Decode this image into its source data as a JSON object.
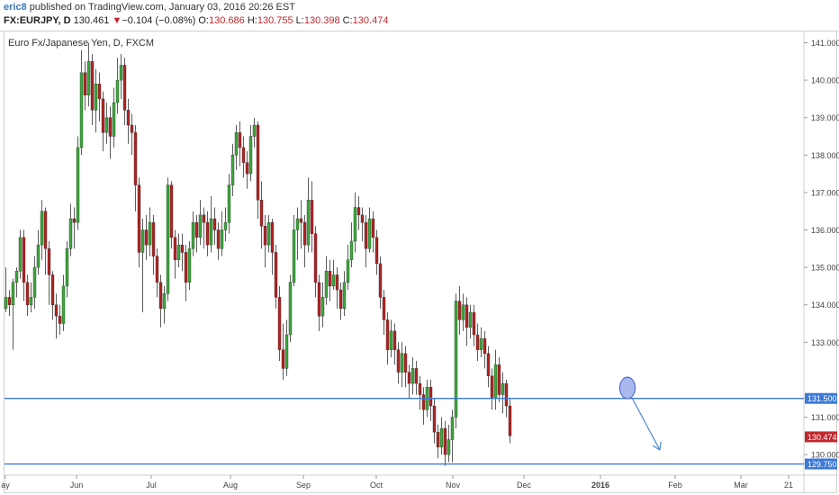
{
  "header": {
    "author": "eric8",
    "published_text": " published on TradingView.com, January 03, 2016 20:26 EST",
    "symbol": "FX:EURJPY, D",
    "last_price": "130.461",
    "change": "−0.104 (−0.08%)",
    "open_label": "O:",
    "open_value": "130.686",
    "high_label": "H:",
    "high_value": "130.755",
    "low_label": "L:",
    "low_value": "130.398",
    "close_label": "C:",
    "close_value": "130.474"
  },
  "chart_title": "Euro Fx/Japanese Yen, D, FXCM",
  "colors": {
    "up": "#3aa93a",
    "down": "#b22222",
    "wick": "#333333",
    "hline": "#3b79d9",
    "marker_fill": "#a9b8ef",
    "marker_stroke": "#3b5bd0",
    "arrow": "#4a84d8",
    "last_price_badge": "#c1272d"
  },
  "chart_data": {
    "type": "candlestick",
    "ylim": [
      129.45,
      141.3
    ],
    "y_ticks": [
      "141.000",
      "140.000",
      "139.000",
      "138.000",
      "137.000",
      "136.000",
      "135.000",
      "134.000",
      "133.000",
      "131.000",
      "130.000"
    ],
    "x_ticks": [
      "ay",
      "Jun",
      "Jul",
      "Aug",
      "Sep",
      "Oct",
      "Nov",
      "Dec",
      "2016",
      "Feb",
      "Mar",
      "21"
    ],
    "horizontal_levels": [
      {
        "value": 131.5,
        "label": "131.500"
      },
      {
        "value": 129.75,
        "label": "129.750"
      }
    ],
    "last_price": {
      "value": 130.474,
      "label": "130.474"
    },
    "candles": [
      [
        133.9,
        134.2,
        135.0,
        133.8
      ],
      [
        134.2,
        134.0,
        134.4,
        133.7
      ],
      [
        134.0,
        134.6,
        134.7,
        132.8
      ],
      [
        134.6,
        134.9,
        135.0,
        134.2
      ],
      [
        134.9,
        135.8,
        136.0,
        134.7
      ],
      [
        135.8,
        134.6,
        136.0,
        134.1
      ],
      [
        134.6,
        134.0,
        134.8,
        133.7
      ],
      [
        134.0,
        134.2,
        134.6,
        133.8
      ],
      [
        134.2,
        135.0,
        135.3,
        133.9
      ],
      [
        135.0,
        135.6,
        136.0,
        134.8
      ],
      [
        135.6,
        136.5,
        136.8,
        135.2
      ],
      [
        136.5,
        135.5,
        136.6,
        134.8
      ],
      [
        135.5,
        134.8,
        135.7,
        134.0
      ],
      [
        134.8,
        134.0,
        134.9,
        133.6
      ],
      [
        134.0,
        133.7,
        134.3,
        133.1
      ],
      [
        133.7,
        133.5,
        134.0,
        133.2
      ],
      [
        133.5,
        134.5,
        134.8,
        133.3
      ],
      [
        134.5,
        135.5,
        135.7,
        134.2
      ],
      [
        135.5,
        136.3,
        136.7,
        135.3
      ],
      [
        136.3,
        136.2,
        136.6,
        135.5
      ],
      [
        136.2,
        138.2,
        138.5,
        136.0
      ],
      [
        138.2,
        140.2,
        140.8,
        138.0
      ],
      [
        140.2,
        139.6,
        140.5,
        139.2
      ],
      [
        139.6,
        140.5,
        141.0,
        139.3
      ],
      [
        140.5,
        139.2,
        140.7,
        138.8
      ],
      [
        139.2,
        139.9,
        140.3,
        138.6
      ],
      [
        139.9,
        139.5,
        140.2,
        138.9
      ],
      [
        139.5,
        138.6,
        139.7,
        138.1
      ],
      [
        138.6,
        139.0,
        139.4,
        138.3
      ],
      [
        139.0,
        138.5,
        139.3,
        137.9
      ],
      [
        138.5,
        139.4,
        139.8,
        138.2
      ],
      [
        139.4,
        140.0,
        140.6,
        139.1
      ],
      [
        140.0,
        140.4,
        140.7,
        139.5
      ],
      [
        140.4,
        139.2,
        140.6,
        138.8
      ],
      [
        139.2,
        138.8,
        139.5,
        138.3
      ],
      [
        138.8,
        138.6,
        139.1,
        138.0
      ],
      [
        138.6,
        137.2,
        138.8,
        136.5
      ],
      [
        137.2,
        135.4,
        137.4,
        135.0
      ],
      [
        135.4,
        136.0,
        136.3,
        133.8
      ],
      [
        136.0,
        135.6,
        136.4,
        135.2
      ],
      [
        135.6,
        136.2,
        136.6,
        135.3
      ],
      [
        136.2,
        135.3,
        136.4,
        134.8
      ],
      [
        135.3,
        134.6,
        135.5,
        134.2
      ],
      [
        134.6,
        133.9,
        134.8,
        133.4
      ],
      [
        133.9,
        134.3,
        134.5,
        133.5
      ],
      [
        134.3,
        137.2,
        137.4,
        134.1
      ],
      [
        137.2,
        135.8,
        137.3,
        135.5
      ],
      [
        135.8,
        135.2,
        136.0,
        134.7
      ],
      [
        135.2,
        135.6,
        135.9,
        135.0
      ],
      [
        135.6,
        135.4,
        135.9,
        134.9
      ],
      [
        135.4,
        134.6,
        135.6,
        134.1
      ],
      [
        134.6,
        135.5,
        135.7,
        134.4
      ],
      [
        135.5,
        136.2,
        136.5,
        135.3
      ],
      [
        136.2,
        135.8,
        136.4,
        135.4
      ],
      [
        135.8,
        136.4,
        136.8,
        135.6
      ],
      [
        136.4,
        136.2,
        136.6,
        135.5
      ],
      [
        136.2,
        135.6,
        136.5,
        135.3
      ],
      [
        135.6,
        136.3,
        136.9,
        135.4
      ],
      [
        136.3,
        136.0,
        136.6,
        135.6
      ],
      [
        136.0,
        135.5,
        136.2,
        135.2
      ],
      [
        135.5,
        136.0,
        136.5,
        135.3
      ],
      [
        136.0,
        136.2,
        136.6,
        135.7
      ],
      [
        136.2,
        137.2,
        137.5,
        135.9
      ],
      [
        137.2,
        138.0,
        138.3,
        136.9
      ],
      [
        138.0,
        138.6,
        138.8,
        137.6
      ],
      [
        138.6,
        138.2,
        138.9,
        137.7
      ],
      [
        138.2,
        137.8,
        138.5,
        137.4
      ],
      [
        137.8,
        137.5,
        138.1,
        137.1
      ],
      [
        137.5,
        138.5,
        138.8,
        137.3
      ],
      [
        138.5,
        138.8,
        139.0,
        138.2
      ],
      [
        138.8,
        136.8,
        138.9,
        136.3
      ],
      [
        136.8,
        136.1,
        137.3,
        135.5
      ],
      [
        136.1,
        135.6,
        136.4,
        135.0
      ],
      [
        135.6,
        136.2,
        136.4,
        135.4
      ],
      [
        136.2,
        135.4,
        136.3,
        134.8
      ],
      [
        135.4,
        134.2,
        135.6,
        133.9
      ],
      [
        134.2,
        132.8,
        134.5,
        132.5
      ],
      [
        132.8,
        132.3,
        133.5,
        132.0
      ],
      [
        132.3,
        133.2,
        133.6,
        132.1
      ],
      [
        133.2,
        134.6,
        134.8,
        133.0
      ],
      [
        134.6,
        136.0,
        136.4,
        134.5
      ],
      [
        136.0,
        136.3,
        136.6,
        135.2
      ],
      [
        136.3,
        136.2,
        136.8,
        135.5
      ],
      [
        136.2,
        135.6,
        136.4,
        135.0
      ],
      [
        135.6,
        136.8,
        137.4,
        135.4
      ],
      [
        136.8,
        135.9,
        137.3,
        135.4
      ],
      [
        135.9,
        134.6,
        136.1,
        134.2
      ],
      [
        134.6,
        133.7,
        134.8,
        133.3
      ],
      [
        133.7,
        134.2,
        134.6,
        133.4
      ],
      [
        134.2,
        134.9,
        135.3,
        134.0
      ],
      [
        134.9,
        134.5,
        135.2,
        134.1
      ],
      [
        134.5,
        134.8,
        135.2,
        134.4
      ],
      [
        134.8,
        134.4,
        135.0,
        133.9
      ],
      [
        134.4,
        133.9,
        134.6,
        133.6
      ],
      [
        133.9,
        134.6,
        134.9,
        133.7
      ],
      [
        134.6,
        135.2,
        135.6,
        134.4
      ],
      [
        135.2,
        135.7,
        136.2,
        135.0
      ],
      [
        135.7,
        136.6,
        137.0,
        135.4
      ],
      [
        136.6,
        136.4,
        136.9,
        136.0
      ],
      [
        136.4,
        136.2,
        136.6,
        135.7
      ],
      [
        136.2,
        135.5,
        136.4,
        135.0
      ],
      [
        135.5,
        136.3,
        136.6,
        135.4
      ],
      [
        136.3,
        135.8,
        136.5,
        135.4
      ],
      [
        135.8,
        135.1,
        136.0,
        134.8
      ],
      [
        135.1,
        134.2,
        135.3,
        133.9
      ],
      [
        134.2,
        133.6,
        134.4,
        133.2
      ],
      [
        133.6,
        132.8,
        133.8,
        132.4
      ],
      [
        132.8,
        133.3,
        133.6,
        132.6
      ],
      [
        133.3,
        132.8,
        133.5,
        132.4
      ],
      [
        132.8,
        132.2,
        133.0,
        131.9
      ],
      [
        132.2,
        132.7,
        133.0,
        131.8
      ],
      [
        132.7,
        132.2,
        132.9,
        131.8
      ],
      [
        132.2,
        131.9,
        132.4,
        131.5
      ],
      [
        131.9,
        132.3,
        132.6,
        131.6
      ],
      [
        132.3,
        131.9,
        132.5,
        131.6
      ],
      [
        131.9,
        131.6,
        132.1,
        131.2
      ],
      [
        131.6,
        131.2,
        131.8,
        130.8
      ],
      [
        131.2,
        131.8,
        132.0,
        131.0
      ],
      [
        131.8,
        131.3,
        132.0,
        130.9
      ],
      [
        131.3,
        130.6,
        131.5,
        130.3
      ],
      [
        130.6,
        130.2,
        130.8,
        129.9
      ],
      [
        130.2,
        130.7,
        131.0,
        130.0
      ],
      [
        130.7,
        130.0,
        130.9,
        129.7
      ],
      [
        130.0,
        130.4,
        130.8,
        129.8
      ],
      [
        130.4,
        131.0,
        131.2,
        129.8
      ],
      [
        131.0,
        134.1,
        134.3,
        130.7
      ],
      [
        134.1,
        133.6,
        134.5,
        133.2
      ],
      [
        133.6,
        134.0,
        134.3,
        133.3
      ],
      [
        134.0,
        133.4,
        134.2,
        132.9
      ],
      [
        133.4,
        133.8,
        134.0,
        133.1
      ],
      [
        133.8,
        133.2,
        134.0,
        132.9
      ],
      [
        133.2,
        132.8,
        133.5,
        132.5
      ],
      [
        132.8,
        133.1,
        133.4,
        132.6
      ],
      [
        133.1,
        132.7,
        133.3,
        132.3
      ],
      [
        132.7,
        132.1,
        132.9,
        131.8
      ],
      [
        132.1,
        131.5,
        132.3,
        131.2
      ],
      [
        131.5,
        132.4,
        132.8,
        131.2
      ],
      [
        132.4,
        131.6,
        132.6,
        131.4
      ],
      [
        131.6,
        131.9,
        132.2,
        131.1
      ],
      [
        131.9,
        131.3,
        132.0,
        131.0
      ],
      [
        131.3,
        130.5,
        131.5,
        130.3
      ]
    ]
  }
}
